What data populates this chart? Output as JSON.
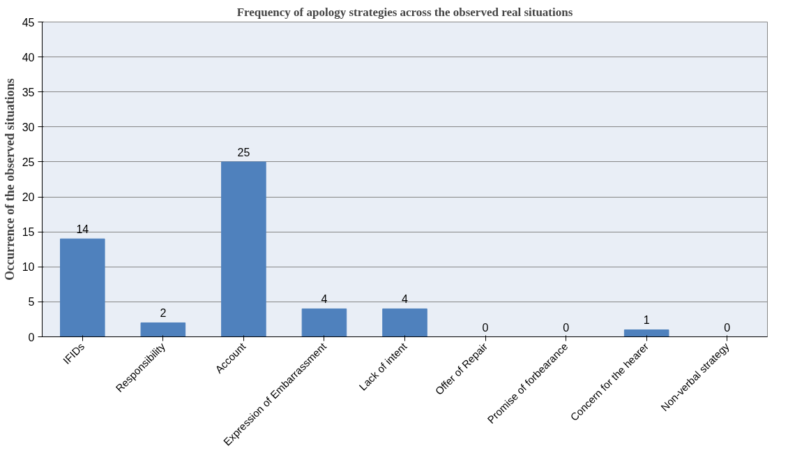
{
  "chart_data": {
    "type": "bar",
    "title": "Frequency of apology strategies across the observed real situations",
    "ylabel": "Occurrence of the observed situations",
    "categories": [
      "IFIDs",
      "Responsibility",
      "Account",
      "Expression of Embarrassment",
      "Lack of intent",
      "Offer of Repair",
      "Promise of forbearance",
      "Concern for the hearer",
      "Non-verbal strategy"
    ],
    "values": [
      14,
      2,
      25,
      4,
      4,
      0,
      0,
      1,
      0
    ],
    "color": "#4f81bd",
    "ylim": [
      0,
      45
    ],
    "yticks": [
      0,
      5,
      10,
      15,
      20,
      25,
      30,
      35,
      40,
      45
    ],
    "grid": "y",
    "data_labels": true
  }
}
